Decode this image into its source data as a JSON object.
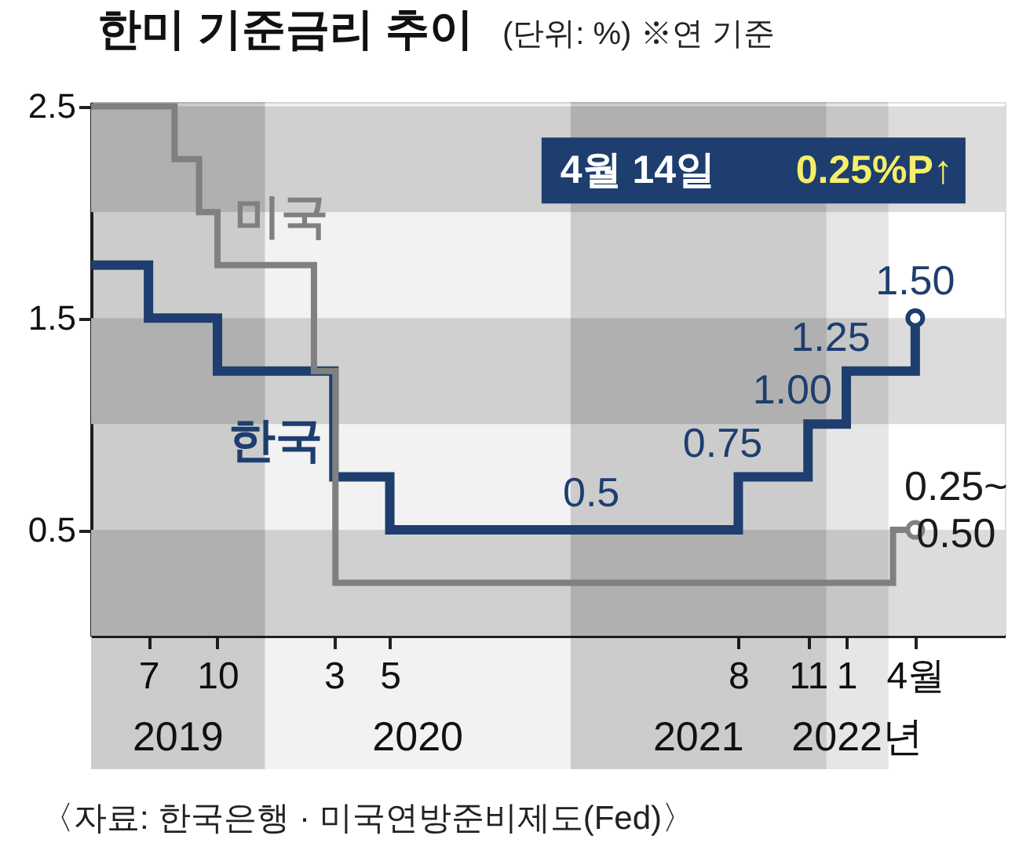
{
  "chart_data": {
    "type": "step",
    "title": "한미 기준금리 추이",
    "subtitle": "(단위: %)  ※연 기준",
    "xlim": [
      "2019-05-04",
      "2022-08-09"
    ],
    "ylim": [
      0,
      2.52
    ],
    "xticks": [
      {
        "value": "2019-07-18",
        "label": "7"
      },
      {
        "value": "2019-10-16",
        "label": "10"
      },
      {
        "value": "2020-03-16",
        "label": "3"
      },
      {
        "value": "2020-05-28",
        "label": "5"
      },
      {
        "value": "2021-08-26",
        "label": "8"
      },
      {
        "value": "2021-11-25",
        "label": "11"
      },
      {
        "value": "2022-01-14",
        "label": "1"
      },
      {
        "value": "2022-04-14",
        "label": "4월"
      }
    ],
    "yticks": [
      0.5,
      1.5,
      2.5
    ],
    "series": [
      {
        "name": "한국",
        "color": "#1d3e6e",
        "x": [
          "2019-05-04",
          "2019-07-18",
          "2019-10-16",
          "2020-03-16",
          "2020-05-28",
          "2021-08-26",
          "2021-11-25",
          "2022-01-14",
          "2022-04-14"
        ],
        "values": [
          1.75,
          1.5,
          1.25,
          0.75,
          0.5,
          0.75,
          1.0,
          1.25,
          1.5
        ]
      },
      {
        "name": "미국",
        "color": "#808080",
        "x": [
          "2019-05-04",
          "2019-08-21",
          "2019-09-22",
          "2019-10-16",
          "2020-02-19",
          "2020-03-18",
          "2022-03-16",
          "2022-04-14"
        ],
        "values": [
          2.5,
          2.25,
          2.0,
          1.75,
          1.25,
          0.25,
          0.5,
          0.5
        ]
      }
    ],
    "bands": [
      {
        "axis": "y",
        "from": 0,
        "to": 0.5,
        "color": "#dcdcdc"
      },
      {
        "axis": "y",
        "from": 1.0,
        "to": 1.5,
        "color": "#dcdcdc"
      },
      {
        "axis": "y",
        "from": 2.0,
        "to": 2.5,
        "color": "#dcdcdc"
      },
      {
        "axis": "x",
        "from": "2019-05-04",
        "to": "2019-12-17",
        "label": "2019",
        "color": "#cccccc"
      },
      {
        "axis": "x",
        "from": "2019-12-17",
        "to": "2021-01-19",
        "label": "2020",
        "color": "#f2f2f2"
      },
      {
        "axis": "x",
        "from": "2021-01-19",
        "to": "2021-12-19",
        "label": "2021",
        "color": "#cccccc"
      },
      {
        "axis": "x",
        "from": "2021-12-19",
        "to": "2022-03-10",
        "label": "2022년",
        "color": "#e6e6e6"
      }
    ],
    "annotations": [
      {
        "text": "0.5",
        "x": "2021-02-15",
        "y": 0.5
      },
      {
        "text": "0.75",
        "x": "2021-08-26",
        "y": 0.75
      },
      {
        "text": "1.00",
        "x": "2021-11-25",
        "y": 1.0
      },
      {
        "text": "1.25",
        "x": "2022-01-14",
        "y": 1.25
      },
      {
        "text": "1.50",
        "x": "2022-04-14",
        "y": 1.5
      },
      {
        "text": "0.25~\n0.50",
        "x": "2022-04-14",
        "y": 0.5
      },
      "4월 14일",
      "0.25%P↑",
      "〈자료: 한국은행 · 미국연방준비제도(Fed)〉"
    ]
  }
}
